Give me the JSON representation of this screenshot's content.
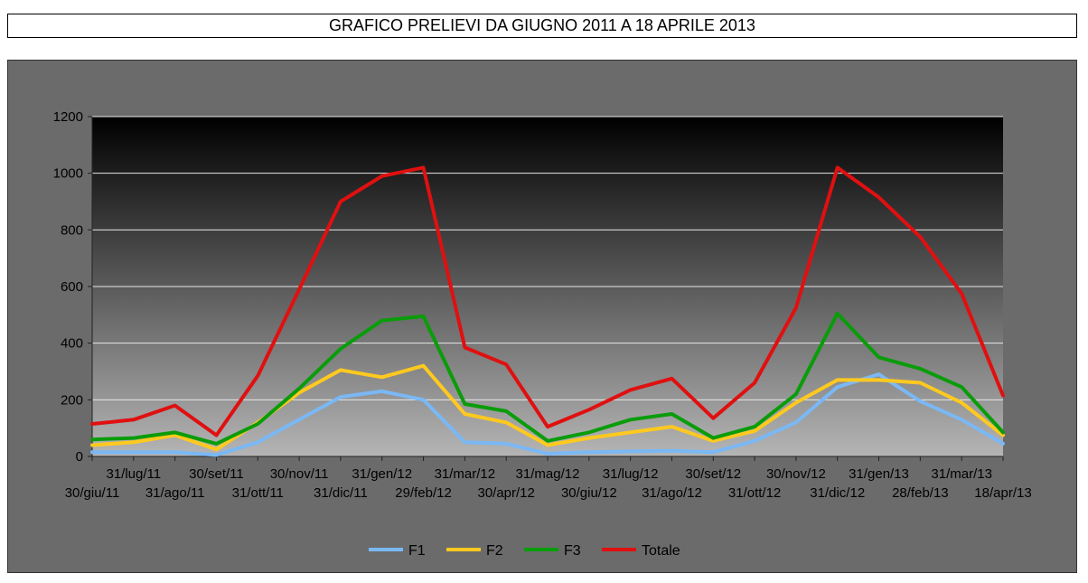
{
  "title": "GRAFICO PRELIEVI DA GIUGNO 2011 A 18 APRILE 2013",
  "chart_data": {
    "type": "line",
    "title": "GRAFICO PRELIEVI DA GIUGNO 2011 A 18 APRILE 2013",
    "xlabel": "",
    "ylabel": "",
    "ylim": [
      0,
      1200
    ],
    "yticks": [
      0,
      200,
      400,
      600,
      800,
      1000,
      1200
    ],
    "grid": true,
    "legend_position": "bottom",
    "categories": [
      "30/giu/11",
      "31/lug/11",
      "31/ago/11",
      "30/set/11",
      "31/ott/11",
      "30/nov/11",
      "31/dic/11",
      "31/gen/12",
      "29/feb/12",
      "31/mar/12",
      "30/apr/12",
      "31/mag/12",
      "30/giu/12",
      "31/lug/12",
      "31/ago/12",
      "30/set/12",
      "31/ott/12",
      "30/nov/12",
      "31/dic/12",
      "31/gen/13",
      "28/feb/13",
      "31/mar/13",
      "18/apr/13"
    ],
    "series": [
      {
        "name": "F1",
        "color": "#7ab8f5",
        "values": [
          15,
          15,
          15,
          5,
          50,
          130,
          210,
          230,
          200,
          50,
          45,
          10,
          15,
          18,
          20,
          15,
          55,
          120,
          245,
          290,
          195,
          130,
          45
        ]
      },
      {
        "name": "F2",
        "color": "#ffc91f",
        "values": [
          40,
          50,
          75,
          25,
          120,
          225,
          305,
          280,
          320,
          150,
          120,
          40,
          65,
          85,
          105,
          55,
          90,
          190,
          270,
          270,
          260,
          190,
          75
        ]
      },
      {
        "name": "F3",
        "color": "#0a9c0a",
        "values": [
          60,
          65,
          85,
          45,
          115,
          240,
          380,
          480,
          495,
          185,
          160,
          55,
          85,
          130,
          150,
          65,
          105,
          220,
          505,
          350,
          310,
          245,
          85
        ]
      },
      {
        "name": "Totale",
        "color": "#e01010",
        "values": [
          115,
          130,
          180,
          75,
          285,
          590,
          900,
          990,
          1020,
          385,
          325,
          105,
          165,
          235,
          275,
          135,
          260,
          525,
          1020,
          915,
          775,
          575,
          215
        ]
      }
    ]
  }
}
